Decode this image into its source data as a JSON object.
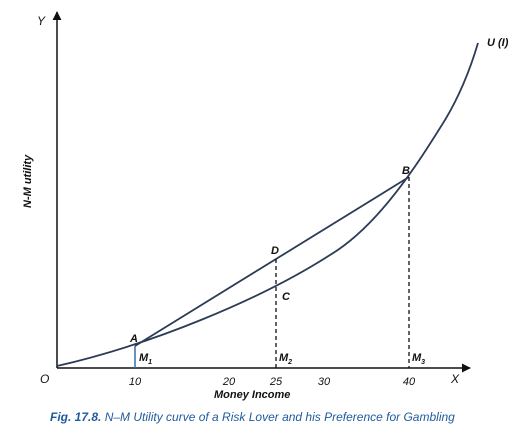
{
  "figure": {
    "caption_number": "Fig. 17.8.",
    "caption_text": " N–M Utility curve of a Risk Lover and his Preference for Gambling",
    "y_axis_title": "N-M utility",
    "x_axis_title": "Money Income",
    "axis_x_letter": "X",
    "axis_y_letter": "Y",
    "origin_label": "O",
    "curve_label": "U (I)",
    "x_ticks": [
      "10",
      "20",
      "25",
      "30",
      "40"
    ],
    "points": {
      "A": "A",
      "B": "B",
      "C": "C",
      "D": "D"
    },
    "m_labels": [
      {
        "base": "M",
        "sub": "1"
      },
      {
        "base": "M",
        "sub": "2"
      },
      {
        "base": "M",
        "sub": "3"
      }
    ],
    "colors": {
      "curve": "#2d3b57",
      "axis": "#111111",
      "drop_line": "#2d6fae",
      "caption": "#1f5a9e"
    }
  }
}
